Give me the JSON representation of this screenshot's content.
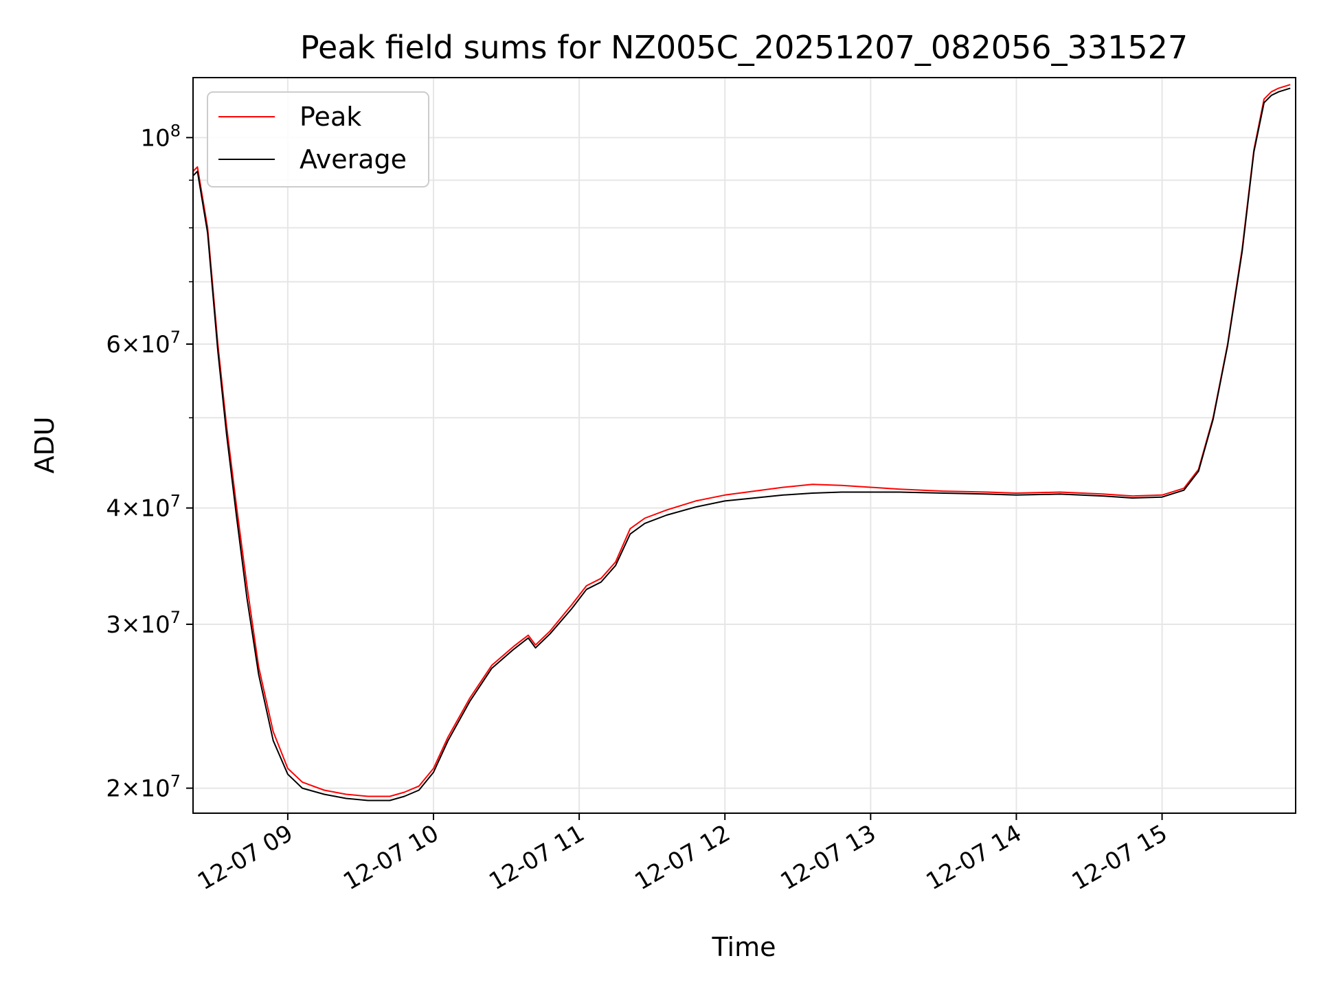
{
  "chart_data": {
    "type": "line",
    "title": "Peak field sums for NZ005C_20251207_082056_331527",
    "xlabel": "Time",
    "ylabel": "ADU",
    "yscale": "log",
    "xlim": [
      "2025-12-07 08:21",
      "2025-12-07 15:55"
    ],
    "ylim": [
      18800000,
      116000000
    ],
    "grid": true,
    "legend": {
      "position": "top-left",
      "entries": [
        "Peak",
        "Average"
      ]
    },
    "x_ticks": [
      {
        "label": "12-07 09",
        "value": "2025-12-07 09:00"
      },
      {
        "label": "12-07 10",
        "value": "2025-12-07 10:00"
      },
      {
        "label": "12-07 11",
        "value": "2025-12-07 11:00"
      },
      {
        "label": "12-07 12",
        "value": "2025-12-07 12:00"
      },
      {
        "label": "12-07 13",
        "value": "2025-12-07 13:00"
      },
      {
        "label": "12-07 14",
        "value": "2025-12-07 14:00"
      },
      {
        "label": "12-07 15",
        "value": "2025-12-07 15:00"
      }
    ],
    "y_ticks": [
      {
        "mantissa": "2",
        "exponent": "7",
        "value": 20000000
      },
      {
        "mantissa": "3",
        "exponent": "7",
        "value": 30000000
      },
      {
        "mantissa": "4",
        "exponent": "7",
        "value": 40000000
      },
      {
        "mantissa": "6",
        "exponent": "7",
        "value": 60000000
      },
      {
        "mantissa": "",
        "exponent": "8",
        "value": 100000000
      }
    ],
    "y_minor_ticks": [
      50000000,
      70000000,
      80000000,
      90000000
    ],
    "series": [
      {
        "name": "Peak",
        "color": "#ff0000",
        "x_hours": [
          8.35,
          8.38,
          8.45,
          8.52,
          8.58,
          8.65,
          8.72,
          8.8,
          8.9,
          9.0,
          9.1,
          9.25,
          9.4,
          9.55,
          9.7,
          9.8,
          9.9,
          10.0,
          10.1,
          10.25,
          10.4,
          10.55,
          10.65,
          10.7,
          10.8,
          10.95,
          11.05,
          11.15,
          11.25,
          11.35,
          11.45,
          11.6,
          11.8,
          12.0,
          12.2,
          12.4,
          12.6,
          12.8,
          13.0,
          13.2,
          13.5,
          13.8,
          14.0,
          14.3,
          14.6,
          14.8,
          15.0,
          15.15,
          15.25,
          15.35,
          15.45,
          15.55,
          15.63,
          15.7,
          15.75,
          15.8,
          15.88
        ],
        "values": [
          92000000,
          93000000,
          80000000,
          60000000,
          49000000,
          40000000,
          33000000,
          27000000,
          23000000,
          21000000,
          20300000,
          19900000,
          19700000,
          19600000,
          19600000,
          19800000,
          20100000,
          21000000,
          22700000,
          25000000,
          27100000,
          28400000,
          29200000,
          28500000,
          29500000,
          31500000,
          33000000,
          33600000,
          35000000,
          38000000,
          39000000,
          39800000,
          40700000,
          41300000,
          41700000,
          42100000,
          42400000,
          42300000,
          42100000,
          41900000,
          41700000,
          41600000,
          41500000,
          41600000,
          41400000,
          41200000,
          41300000,
          42000000,
          44000000,
          50000000,
          60000000,
          76000000,
          97000000,
          110000000,
          112000000,
          113000000,
          114000000
        ]
      },
      {
        "name": "Average",
        "color": "#000000",
        "x_hours": [
          8.35,
          8.38,
          8.45,
          8.52,
          8.58,
          8.65,
          8.72,
          8.8,
          8.9,
          9.0,
          9.1,
          9.25,
          9.4,
          9.55,
          9.7,
          9.8,
          9.9,
          10.0,
          10.1,
          10.25,
          10.4,
          10.55,
          10.65,
          10.7,
          10.8,
          10.95,
          11.05,
          11.15,
          11.25,
          11.35,
          11.45,
          11.6,
          11.8,
          12.0,
          12.2,
          12.4,
          12.6,
          12.8,
          13.0,
          13.2,
          13.5,
          13.8,
          14.0,
          14.3,
          14.6,
          14.8,
          15.0,
          15.15,
          15.25,
          15.35,
          15.45,
          15.55,
          15.63,
          15.7,
          15.75,
          15.8,
          15.88
        ],
        "values": [
          91000000,
          92000000,
          79000000,
          59000000,
          48000000,
          39000000,
          32000000,
          26500000,
          22500000,
          20700000,
          20000000,
          19700000,
          19500000,
          19400000,
          19400000,
          19600000,
          19900000,
          20800000,
          22500000,
          24800000,
          26900000,
          28200000,
          29000000,
          28300000,
          29300000,
          31200000,
          32700000,
          33300000,
          34700000,
          37500000,
          38500000,
          39300000,
          40100000,
          40700000,
          41000000,
          41300000,
          41500000,
          41600000,
          41600000,
          41600000,
          41500000,
          41400000,
          41300000,
          41400000,
          41200000,
          41000000,
          41100000,
          41800000,
          43800000,
          49800000,
          59800000,
          75500000,
          96500000,
          109000000,
          111000000,
          112000000,
          113000000
        ]
      }
    ]
  }
}
